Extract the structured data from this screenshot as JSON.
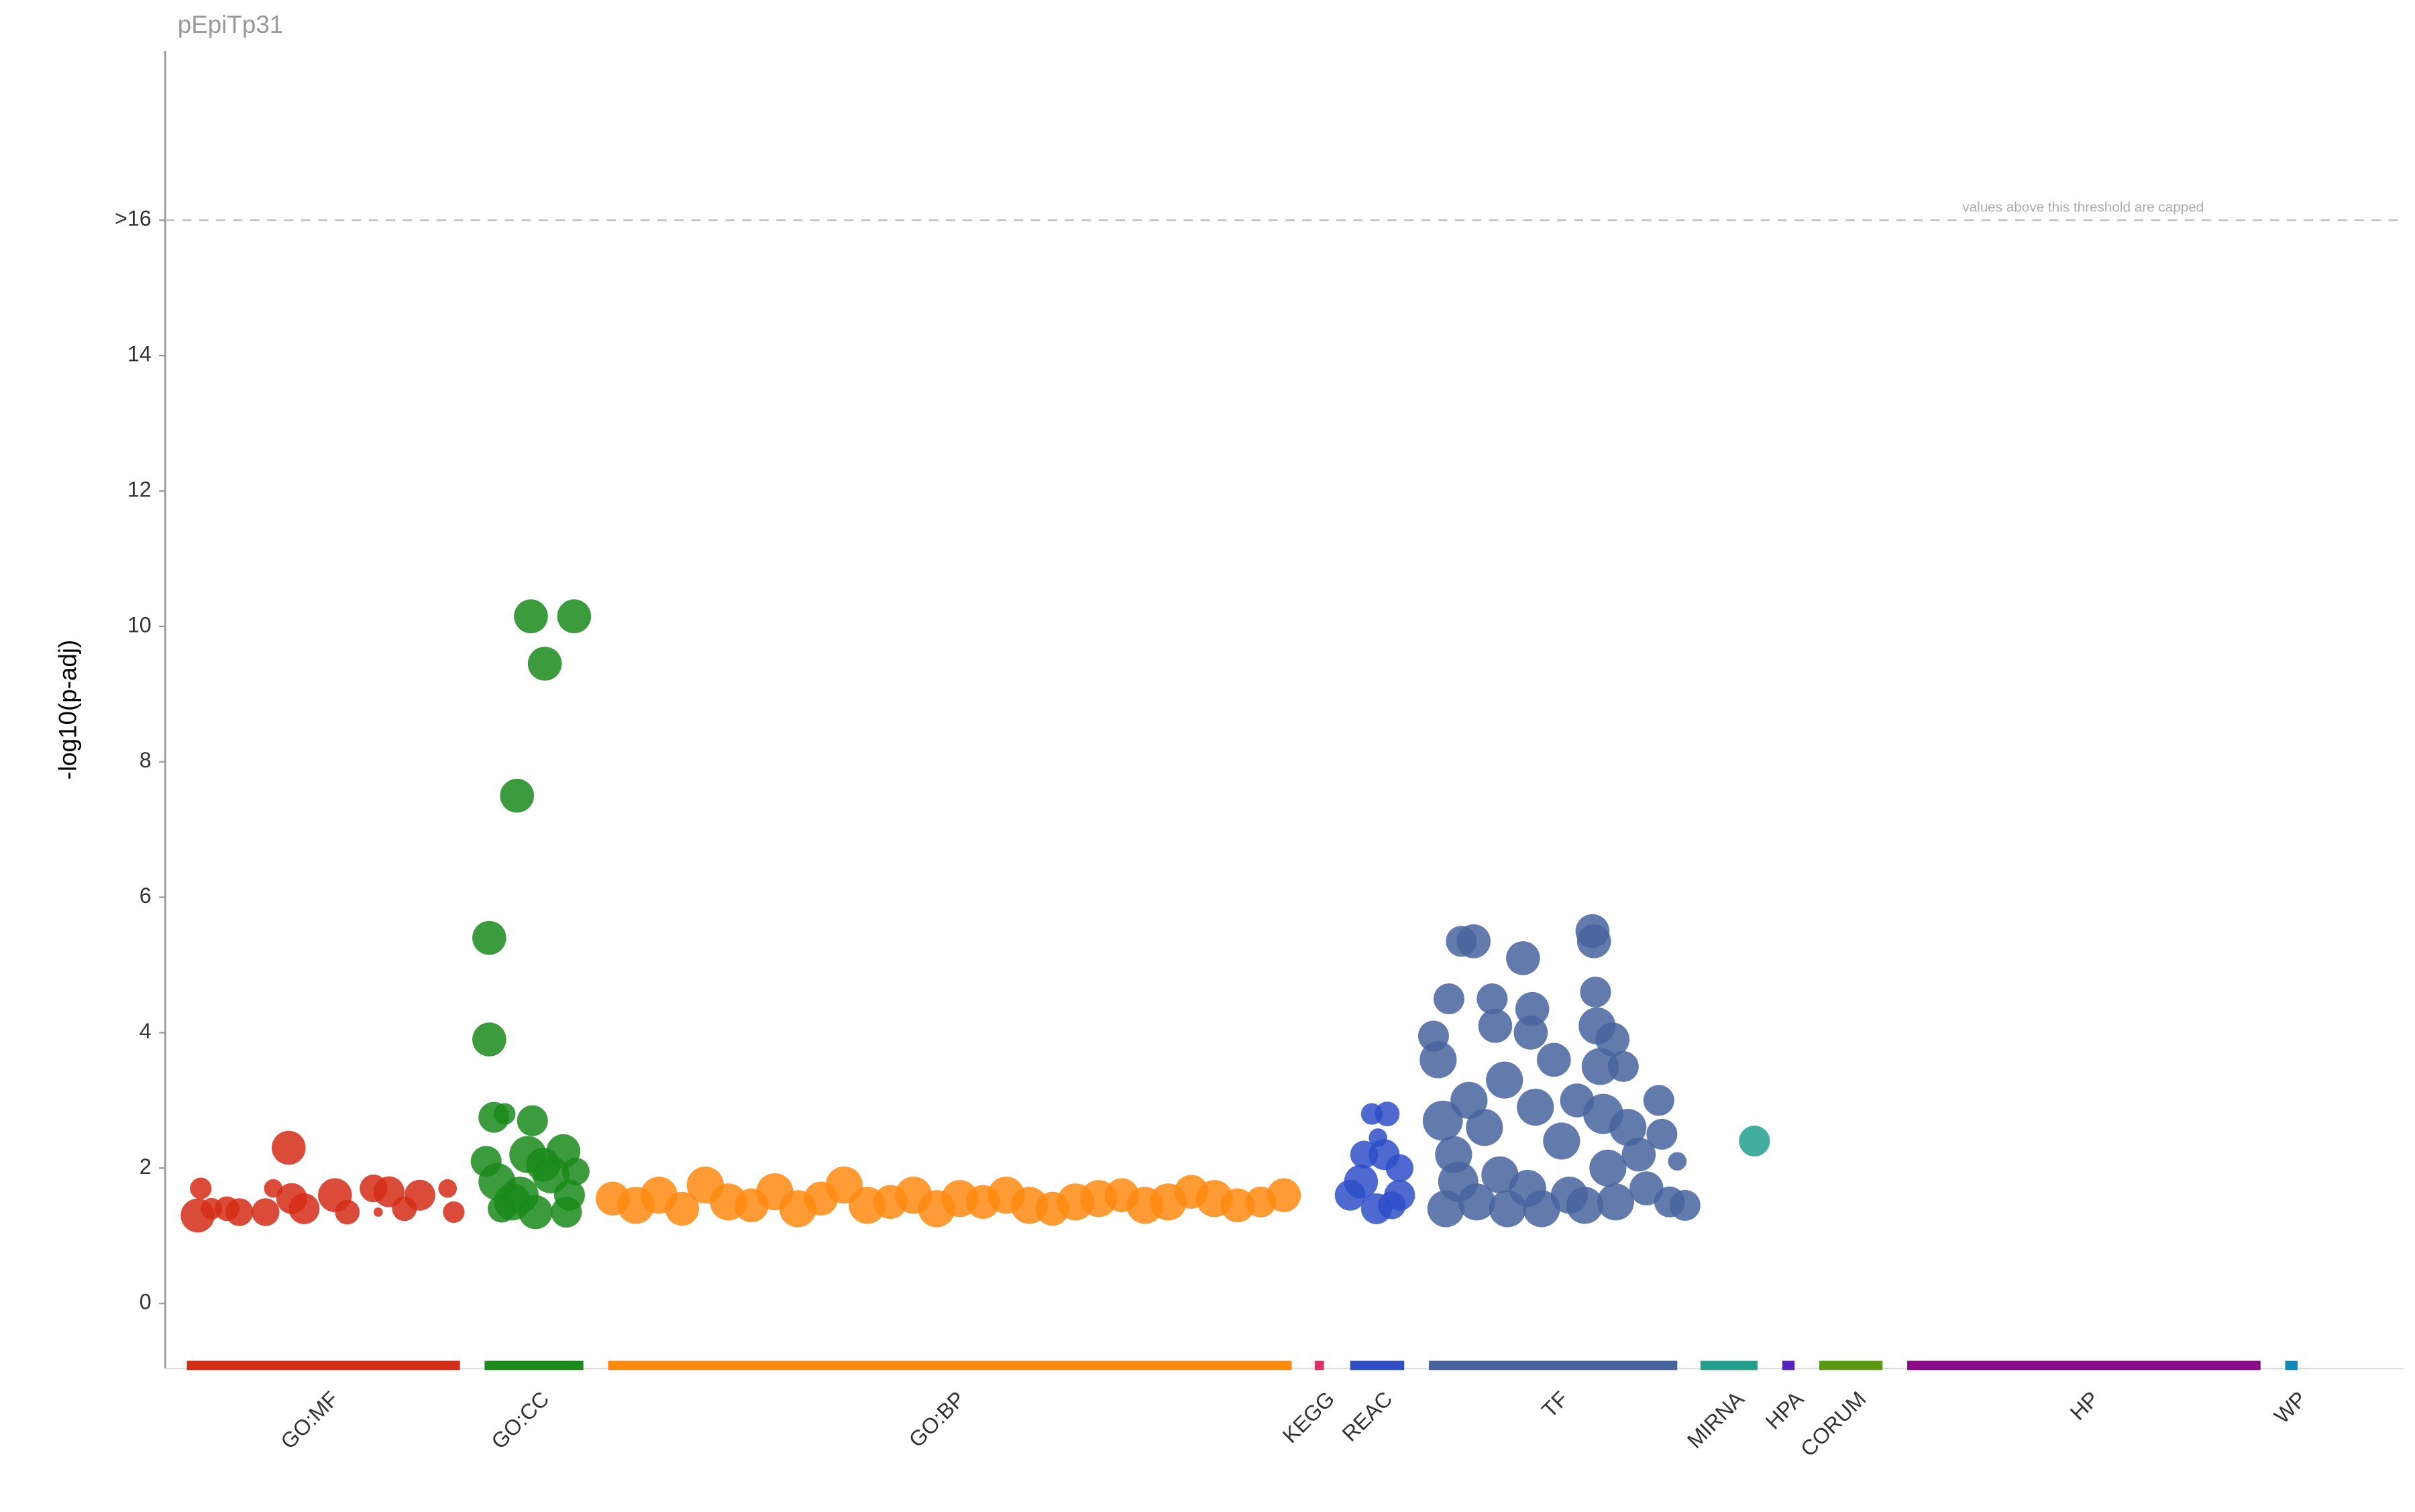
{
  "chart_data": {
    "type": "scatter",
    "title": "pEpiTp31",
    "y_label": "-log10(p-adj)",
    "annotation": "values above this threshold are capped",
    "threshold_line": true,
    "opacity": 0.85,
    "xlim": [
      0,
      1451
    ],
    "ylim": [
      -0.96,
      18.5
    ],
    "yticks": [
      0,
      2,
      4,
      6,
      8,
      10,
      12,
      14,
      {
        "value": 16,
        "label": ">16"
      }
    ],
    "series": [
      {
        "name": "GO:MF",
        "color": "#d42d16",
        "range": [
          14,
          191
        ],
        "x": [
          21,
          23,
          30,
          40,
          48,
          65,
          70,
          80,
          82,
          90,
          110,
          118,
          135,
          145,
          155,
          165,
          183,
          187,
          138
        ],
        "values": [
          1.3,
          1.7,
          1.4,
          1.4,
          1.35,
          1.35,
          1.7,
          2.3,
          1.55,
          1.4,
          1.6,
          1.35,
          1.7,
          1.65,
          1.4,
          1.6,
          1.7,
          1.35,
          1.35
        ],
        "sizes": [
          11,
          7,
          7,
          8,
          9,
          9,
          6,
          11,
          10,
          10,
          11,
          8,
          9,
          10,
          8,
          10,
          6,
          7,
          3
        ]
      },
      {
        "name": "GO:CC",
        "color": "#1a8a1a",
        "range": [
          207,
          271
        ],
        "x": [
          210,
          210,
          213,
          220,
          228,
          237,
          246,
          265,
          238,
          208,
          215,
          225,
          235,
          240,
          250,
          258,
          262,
          266,
          260,
          218,
          245,
          230
        ],
        "values": [
          5.4,
          3.9,
          2.75,
          2.8,
          7.5,
          10.15,
          9.45,
          10.15,
          2.7,
          2.1,
          1.8,
          1.5,
          2.2,
          1.35,
          1.9,
          2.25,
          1.6,
          1.95,
          1.35,
          1.4,
          2.05,
          1.6
        ],
        "sizes": [
          11,
          11,
          10,
          7,
          11,
          11,
          11,
          11,
          10,
          10,
          12,
          12,
          12,
          11,
          12,
          11,
          10,
          9,
          10,
          9,
          11,
          12
        ]
      },
      {
        "name": "GO:BP",
        "color": "#ff8a10",
        "range": [
          287,
          730
        ],
        "x": [
          290,
          305,
          320,
          335,
          350,
          365,
          380,
          395,
          410,
          425,
          440,
          455,
          470,
          485,
          500,
          515,
          530,
          545,
          560,
          575,
          590,
          605,
          620,
          635,
          650,
          665,
          680,
          695,
          710,
          725
        ],
        "values": [
          1.55,
          1.45,
          1.6,
          1.4,
          1.75,
          1.5,
          1.45,
          1.65,
          1.4,
          1.55,
          1.75,
          1.45,
          1.5,
          1.6,
          1.4,
          1.55,
          1.5,
          1.6,
          1.45,
          1.4,
          1.5,
          1.55,
          1.6,
          1.45,
          1.5,
          1.65,
          1.55,
          1.45,
          1.5,
          1.6
        ],
        "sizes": [
          11,
          12,
          12,
          11,
          12,
          12,
          11,
          12,
          12,
          11,
          12,
          12,
          11,
          12,
          12,
          12,
          11,
          12,
          12,
          11,
          12,
          12,
          11,
          12,
          12,
          11,
          12,
          11,
          10,
          11
        ]
      },
      {
        "name": "KEGG",
        "color": "#dd3366",
        "range": [
          745,
          751
        ],
        "x": [],
        "values": [],
        "sizes": []
      },
      {
        "name": "REAC",
        "color": "#2f4fc8",
        "range": [
          768,
          803
        ],
        "x": [
          768,
          775,
          782,
          790,
          795,
          800,
          785,
          777,
          792,
          786,
          800
        ],
        "values": [
          1.6,
          1.8,
          2.8,
          2.2,
          1.45,
          2.0,
          1.4,
          2.2,
          2.8,
          2.45,
          1.6
        ],
        "sizes": [
          10,
          11,
          7,
          10,
          9,
          9,
          10,
          9,
          8,
          6,
          10
        ]
      },
      {
        "name": "TF",
        "color": "#48649e",
        "range": [
          819,
          980
        ],
        "x": [
          822,
          825,
          828,
          830,
          832,
          835,
          838,
          840,
          845,
          848,
          850,
          855,
          860,
          862,
          865,
          868,
          870,
          880,
          883,
          885,
          886,
          888,
          892,
          900,
          905,
          910,
          915,
          920,
          925,
          926,
          927,
          928,
          930,
          932,
          935,
          938,
          940,
          945,
          948,
          955,
          960,
          968,
          970,
          975,
          980,
          985
        ],
        "values": [
          3.95,
          3.6,
          2.7,
          1.4,
          4.5,
          2.2,
          1.8,
          5.35,
          3.0,
          5.35,
          1.5,
          2.6,
          4.5,
          4.1,
          1.9,
          3.3,
          1.4,
          5.1,
          1.7,
          4.0,
          4.35,
          2.9,
          1.4,
          3.6,
          2.4,
          1.6,
          3.0,
          1.45,
          5.5,
          5.35,
          4.6,
          4.1,
          3.5,
          2.8,
          2.0,
          3.9,
          1.5,
          3.5,
          2.6,
          2.2,
          1.7,
          3.0,
          2.5,
          1.5,
          2.1,
          1.45
        ],
        "sizes": [
          10,
          12,
          13,
          12,
          10,
          12,
          13,
          10,
          12,
          11,
          12,
          12,
          10,
          11,
          12,
          12,
          12,
          11,
          12,
          11,
          11,
          12,
          12,
          11,
          12,
          12,
          11,
          12,
          11,
          11,
          10,
          12,
          12,
          13,
          12,
          11,
          12,
          10,
          12,
          11,
          11,
          10,
          10,
          10,
          6,
          10
        ]
      },
      {
        "name": "MIRNA",
        "color": "#22a08c",
        "range": [
          995,
          1032
        ],
        "x": [
          1030
        ],
        "values": [
          2.4
        ],
        "sizes": [
          10
        ]
      },
      {
        "name": "HPA",
        "color": "#5a22c0",
        "range": [
          1048,
          1056
        ],
        "x": [],
        "values": [],
        "sizes": []
      },
      {
        "name": "CORUM",
        "color": "#5a9a10",
        "range": [
          1072,
          1113
        ],
        "x": [],
        "values": [],
        "sizes": []
      },
      {
        "name": "HP",
        "color": "#8a0a8a",
        "range": [
          1129,
          1358
        ],
        "x": [],
        "values": [],
        "sizes": []
      },
      {
        "name": "WP",
        "color": "#1188bb",
        "range": [
          1374,
          1382
        ],
        "x": [],
        "values": [],
        "sizes": []
      }
    ]
  }
}
